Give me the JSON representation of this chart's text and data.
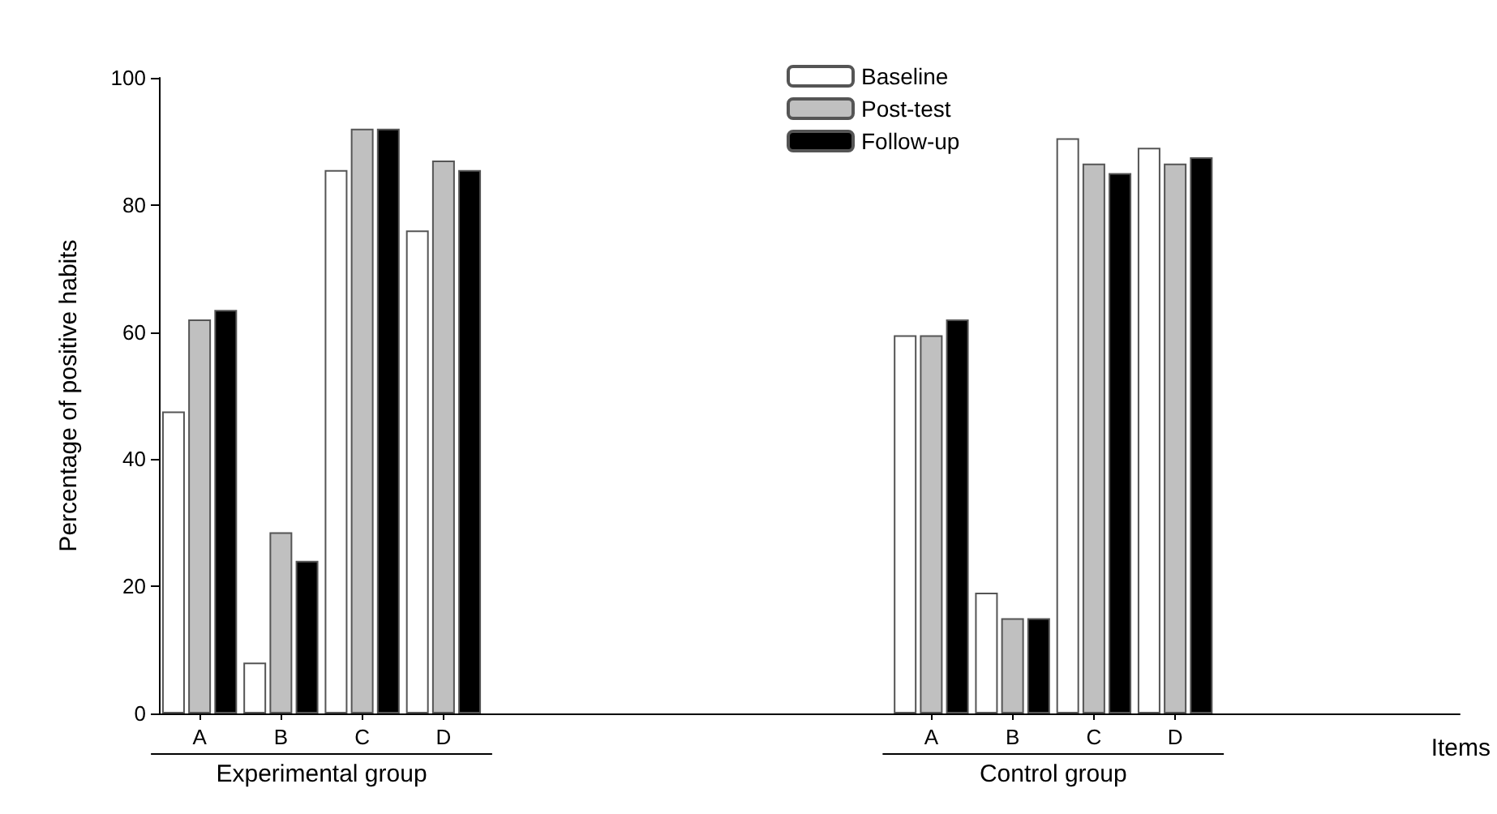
{
  "chart_data": {
    "type": "bar",
    "ylabel": "Percentage of positive habits",
    "xlabel": "Items",
    "categories": [
      "A",
      "B",
      "C",
      "D",
      null,
      null,
      null,
      null,
      null,
      "A",
      "B",
      "C",
      "D",
      null,
      null,
      null
    ],
    "series": [
      {
        "name": "Baseline",
        "color": "#ffffff",
        "values": [
          47.5,
          8,
          85.5,
          76,
          null,
          null,
          null,
          null,
          null,
          59.5,
          19,
          90.5,
          89,
          null,
          null,
          null
        ]
      },
      {
        "name": "Post-test",
        "color": "#c0c0c0",
        "values": [
          62,
          28.5,
          92,
          87,
          null,
          null,
          null,
          null,
          null,
          59.5,
          15,
          86.5,
          86.5,
          null,
          null,
          null
        ]
      },
      {
        "name": "Follow-up",
        "color": "#000000",
        "values": [
          63.5,
          24,
          92,
          85.5,
          null,
          null,
          null,
          null,
          null,
          62,
          15,
          85,
          87.5,
          null,
          null,
          null
        ]
      }
    ],
    "ylim": [
      0,
      100
    ],
    "yticks": [
      0,
      20,
      40,
      60,
      80,
      100
    ],
    "legend": "top",
    "annotations": [
      "Experimental group",
      "Control group"
    ]
  }
}
